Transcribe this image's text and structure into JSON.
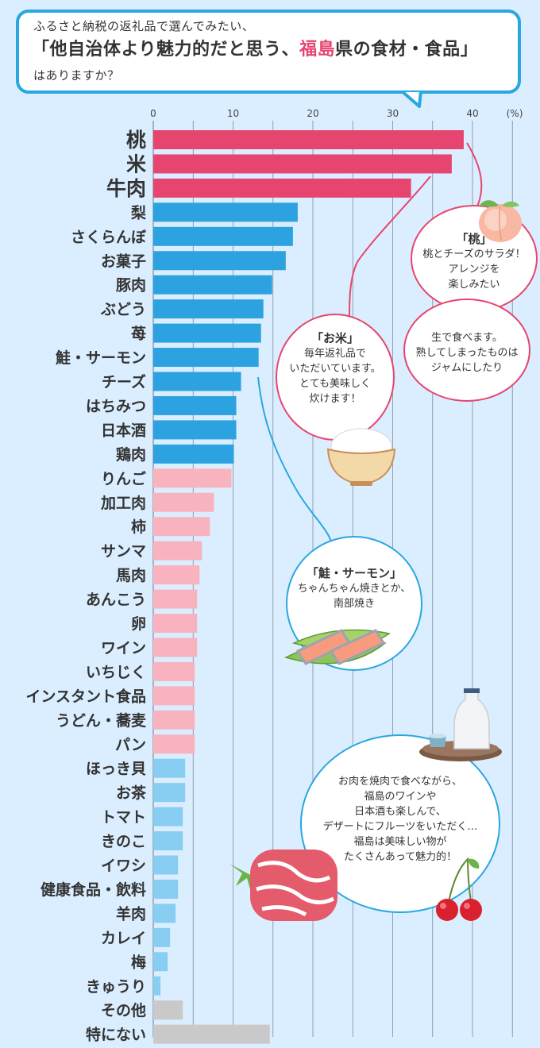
{
  "question": {
    "line1": "ふるさと納税の返礼品で選んでみたい、",
    "line2_pre": "「他自治体より魅力的だと思う、",
    "line2_hl": "福島",
    "line2_post": "県の食材・食品」",
    "line3": "はありますか？"
  },
  "chart_data": {
    "type": "bar",
    "orientation": "horizontal",
    "unit_label": "(%)",
    "xlim": [
      0,
      45
    ],
    "ticks": [
      0,
      10,
      20,
      30,
      40
    ],
    "categories": [
      "桃",
      "米",
      "牛肉",
      "梨",
      "さくらんぼ",
      "お菓子",
      "豚肉",
      "ぶどう",
      "苺",
      "鮭・サーモン",
      "チーズ",
      "はちみつ",
      "日本酒",
      "鶏肉",
      "りんご",
      "加工肉",
      "柿",
      "サンマ",
      "馬肉",
      "あんこう",
      "卵",
      "ワイン",
      "いちじく",
      "インスタント食品",
      "うどん・蕎麦",
      "パン",
      "ほっき貝",
      "お茶",
      "トマト",
      "きのこ",
      "イワシ",
      "健康食品・飲料",
      "羊肉",
      "カレイ",
      "梅",
      "きゅうり",
      "その他",
      "特にない"
    ],
    "values": [
      38.9,
      37.4,
      32.3,
      18.1,
      17.5,
      16.6,
      14.9,
      13.8,
      13.5,
      13.2,
      11.0,
      10.4,
      10.4,
      10.1,
      9.8,
      7.6,
      7.1,
      6.1,
      5.8,
      5.5,
      5.5,
      5.5,
      5.2,
      5.2,
      5.2,
      5.2,
      4.0,
      4.0,
      3.7,
      3.7,
      3.1,
      3.1,
      2.8,
      2.1,
      1.8,
      0.9,
      3.7,
      14.6
    ],
    "colors": [
      "#e6456f",
      "#e6456f",
      "#e6456f",
      "#2da2e0",
      "#2da2e0",
      "#2da2e0",
      "#2da2e0",
      "#2da2e0",
      "#2da2e0",
      "#2da2e0",
      "#2da2e0",
      "#2da2e0",
      "#2da2e0",
      "#2da2e0",
      "#f9b3be",
      "#f9b3be",
      "#f9b3be",
      "#f9b3be",
      "#f9b3be",
      "#f9b3be",
      "#f9b3be",
      "#f9b3be",
      "#f9b3be",
      "#f9b3be",
      "#f9b3be",
      "#f9b3be",
      "#88cdf2",
      "#88cdf2",
      "#88cdf2",
      "#88cdf2",
      "#88cdf2",
      "#88cdf2",
      "#88cdf2",
      "#88cdf2",
      "#88cdf2",
      "#88cdf2",
      "#c9c9c9",
      "#c9c9c9"
    ],
    "grid": true
  },
  "comments": {
    "momo": {
      "title": "「桃」",
      "lines": [
        "桃とチーズのサラダ！",
        "アレンジを",
        "楽しみたい"
      ]
    },
    "momo2": {
      "lines": [
        "生で食べます。",
        "熟してしまったものは",
        "ジャムにしたり"
      ]
    },
    "okome": {
      "title": "「お米」",
      "lines": [
        "毎年返礼品で",
        "いただいています。",
        "とても美味しく",
        "炊けます！"
      ]
    },
    "sake": {
      "title": "「鮭・サーモン」",
      "lines": [
        "ちゃんちゃん焼きとか、",
        "南部焼き"
      ]
    },
    "overall": {
      "lines": [
        "お肉を焼肉で食べながら、",
        "福島のワインや",
        "日本酒も楽しんで、",
        "デザートにフルーツをいただく…",
        "福島は美味しい物が",
        "たくさんあって魅力的！"
      ]
    }
  },
  "colors": {
    "accent_pink": "#e6456f",
    "accent_blue": "#29a7e1",
    "background": "#dbeeff"
  }
}
